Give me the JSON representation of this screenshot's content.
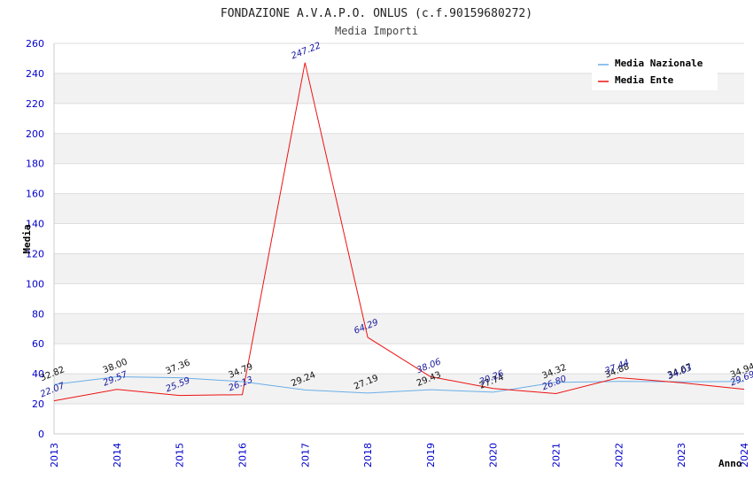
{
  "chart_data": {
    "type": "line",
    "title": "FONDAZIONE A.V.A.P.O. ONLUS (c.f.90159680272)",
    "subtitle": "Media Importi",
    "xlabel": "Anno",
    "ylabel": "Media",
    "ylim": [
      0,
      260
    ],
    "yticks": [
      0,
      20,
      40,
      60,
      80,
      100,
      120,
      140,
      160,
      180,
      200,
      220,
      240,
      260
    ],
    "x": [
      "2013",
      "2014",
      "2015",
      "2016",
      "2017",
      "2018",
      "2019",
      "2020",
      "2021",
      "2022",
      "2023",
      "2024"
    ],
    "grid": true,
    "legend_position": "top-right",
    "series": [
      {
        "name": "Media Nazionale",
        "color": "#6aaee8",
        "values": [
          32.82,
          38.0,
          37.36,
          34.79,
          29.24,
          27.19,
          29.43,
          27.74,
          34.32,
          34.88,
          34.67,
          34.94
        ],
        "labels": [
          "32.82",
          "38.00",
          "37.36",
          "34.79",
          "29.24",
          "27.19",
          "29.43",
          "27.74",
          "34.32",
          "34.88",
          "34.67",
          "34.94"
        ]
      },
      {
        "name": "Media Ente",
        "color": "#ee1111",
        "values": [
          22.07,
          29.57,
          25.59,
          26.13,
          247.22,
          64.29,
          38.06,
          30.26,
          26.8,
          37.44,
          34.03,
          29.69
        ],
        "labels": [
          "22.07",
          "29.57",
          "25.59",
          "26.13",
          "247.22",
          "64.29",
          "38.06",
          "30.26",
          "26.80",
          "37.44",
          "34.03",
          "29.69"
        ]
      }
    ]
  }
}
